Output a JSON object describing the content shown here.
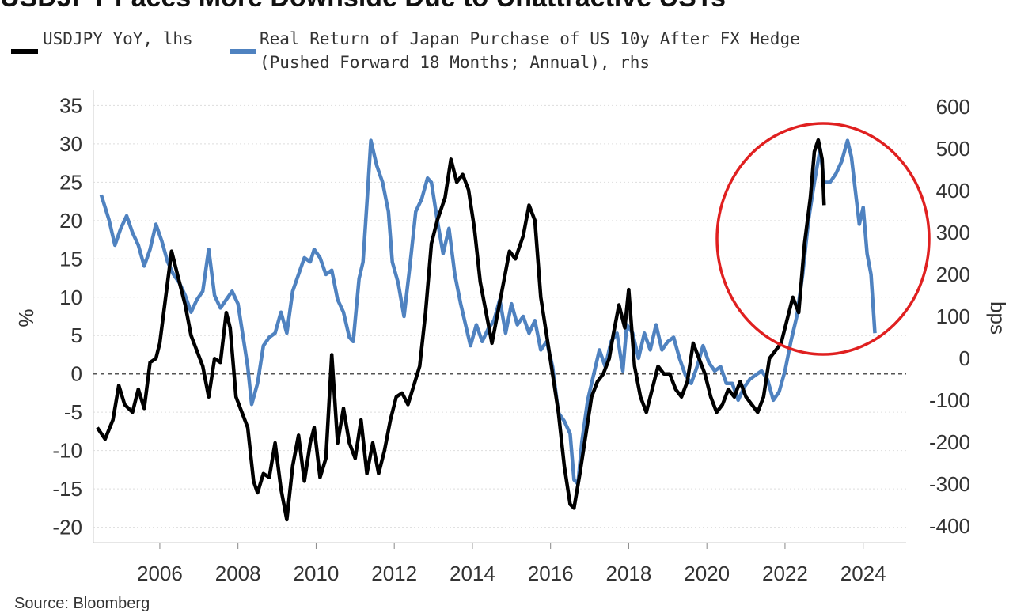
{
  "title": "USDJPY Faces More Downside Due to Unattractive USTs",
  "legend": {
    "series1": "USDJPY YoY, lhs",
    "series2_line1": "Real Return of Japan Purchase of US 10y After FX Hedge",
    "series2_line2": "(Pushed Forward 18 Months; Annual), rhs"
  },
  "source": "Source: Bloomberg",
  "colors": {
    "usdjpy": "#000000",
    "real_return": "#4f82c0",
    "annotation_circle": "#e02020",
    "zero_line": "#555555",
    "grid": "#dddddd"
  },
  "chart_data": {
    "type": "line",
    "xlim": [
      2004.3,
      2025.1
    ],
    "x_ticks": [
      2006,
      2008,
      2010,
      2012,
      2014,
      2016,
      2018,
      2020,
      2022,
      2024
    ],
    "left_axis": {
      "label": "%",
      "ylim": [
        -22,
        37
      ],
      "ticks": [
        -20,
        -15,
        -10,
        -5,
        0,
        5,
        10,
        15,
        20,
        25,
        30,
        35
      ]
    },
    "right_axis": {
      "label": "bps",
      "ylim": [
        -440,
        640
      ],
      "ticks": [
        -400,
        -300,
        -200,
        -100,
        0,
        100,
        200,
        300,
        400,
        500,
        600
      ]
    },
    "zero_line": 0,
    "annotation": "circle around 2022-2024 peak",
    "series": [
      {
        "name": "USDJPY YoY, lhs",
        "axis": "left",
        "points": [
          [
            2004.4,
            -7
          ],
          [
            2004.6,
            -8.5
          ],
          [
            2004.8,
            -6
          ],
          [
            2004.95,
            -1.5
          ],
          [
            2005.1,
            -4
          ],
          [
            2005.3,
            -5
          ],
          [
            2005.45,
            -2
          ],
          [
            2005.6,
            -4.5
          ],
          [
            2005.75,
            1.5
          ],
          [
            2005.9,
            2
          ],
          [
            2006.0,
            4
          ],
          [
            2006.15,
            10
          ],
          [
            2006.3,
            16
          ],
          [
            2006.5,
            12
          ],
          [
            2006.65,
            9
          ],
          [
            2006.8,
            5
          ],
          [
            2006.95,
            3
          ],
          [
            2007.1,
            1
          ],
          [
            2007.25,
            -3
          ],
          [
            2007.4,
            2
          ],
          [
            2007.55,
            1.5
          ],
          [
            2007.7,
            8
          ],
          [
            2007.8,
            6
          ],
          [
            2007.95,
            -3
          ],
          [
            2008.1,
            -5
          ],
          [
            2008.25,
            -7
          ],
          [
            2008.4,
            -14
          ],
          [
            2008.5,
            -15.5
          ],
          [
            2008.65,
            -13
          ],
          [
            2008.8,
            -13.5
          ],
          [
            2008.95,
            -9
          ],
          [
            2009.1,
            -15
          ],
          [
            2009.25,
            -19
          ],
          [
            2009.4,
            -12
          ],
          [
            2009.55,
            -8
          ],
          [
            2009.7,
            -14
          ],
          [
            2009.85,
            -9
          ],
          [
            2009.95,
            -7
          ],
          [
            2010.1,
            -13.5
          ],
          [
            2010.25,
            -11
          ],
          [
            2010.4,
            2.5
          ],
          [
            2010.55,
            -9
          ],
          [
            2010.7,
            -4.5
          ],
          [
            2010.85,
            -9
          ],
          [
            2011.0,
            -11
          ],
          [
            2011.15,
            -6
          ],
          [
            2011.3,
            -13
          ],
          [
            2011.45,
            -9
          ],
          [
            2011.6,
            -13
          ],
          [
            2011.75,
            -10
          ],
          [
            2011.9,
            -6
          ],
          [
            2012.05,
            -3
          ],
          [
            2012.2,
            -2.5
          ],
          [
            2012.35,
            -4
          ],
          [
            2012.5,
            -1.5
          ],
          [
            2012.65,
            1
          ],
          [
            2012.8,
            8
          ],
          [
            2012.95,
            17
          ],
          [
            2013.1,
            20
          ],
          [
            2013.3,
            23
          ],
          [
            2013.45,
            28
          ],
          [
            2013.6,
            25
          ],
          [
            2013.75,
            26
          ],
          [
            2013.9,
            24
          ],
          [
            2014.05,
            19
          ],
          [
            2014.2,
            12
          ],
          [
            2014.35,
            8
          ],
          [
            2014.5,
            4
          ],
          [
            2014.65,
            8
          ],
          [
            2014.8,
            12
          ],
          [
            2014.95,
            16
          ],
          [
            2015.1,
            15
          ],
          [
            2015.3,
            18
          ],
          [
            2015.45,
            22
          ],
          [
            2015.6,
            20
          ],
          [
            2015.75,
            10
          ],
          [
            2015.9,
            5
          ],
          [
            2016.05,
            0
          ],
          [
            2016.2,
            -5
          ],
          [
            2016.35,
            -12
          ],
          [
            2016.5,
            -17
          ],
          [
            2016.6,
            -17.5
          ],
          [
            2016.75,
            -13
          ],
          [
            2016.9,
            -8
          ],
          [
            2017.05,
            -3
          ],
          [
            2017.2,
            -1
          ],
          [
            2017.35,
            0
          ],
          [
            2017.5,
            2
          ],
          [
            2017.6,
            5
          ],
          [
            2017.75,
            9
          ],
          [
            2017.9,
            6
          ],
          [
            2018.0,
            11
          ],
          [
            2018.15,
            1
          ],
          [
            2018.3,
            -3
          ],
          [
            2018.45,
            -5
          ],
          [
            2018.6,
            -2
          ],
          [
            2018.75,
            1
          ],
          [
            2018.9,
            0
          ],
          [
            2019.05,
            0
          ],
          [
            2019.2,
            -2
          ],
          [
            2019.35,
            -3
          ],
          [
            2019.5,
            -1
          ],
          [
            2019.65,
            4
          ],
          [
            2019.8,
            2
          ],
          [
            2019.95,
            0
          ],
          [
            2020.1,
            -3
          ],
          [
            2020.25,
            -5
          ],
          [
            2020.4,
            -4
          ],
          [
            2020.55,
            -2
          ],
          [
            2020.7,
            -3
          ],
          [
            2020.85,
            -1
          ],
          [
            2021.0,
            -3
          ],
          [
            2021.15,
            -4
          ],
          [
            2021.3,
            -5
          ],
          [
            2021.45,
            -3
          ],
          [
            2021.6,
            2
          ],
          [
            2021.75,
            3
          ],
          [
            2021.9,
            4
          ],
          [
            2022.05,
            7
          ],
          [
            2022.2,
            10
          ],
          [
            2022.35,
            8
          ],
          [
            2022.5,
            17
          ],
          [
            2022.65,
            23
          ],
          [
            2022.75,
            29
          ],
          [
            2022.85,
            30.5
          ],
          [
            2022.95,
            28
          ],
          [
            2023.0,
            22
          ]
        ]
      },
      {
        "name": "Real Return of Japan Purchase of US 10y After FX Hedge (Pushed Forward 18 Months; Annual), rhs",
        "axis": "right",
        "points": [
          [
            2004.5,
            390
          ],
          [
            2004.7,
            330
          ],
          [
            2004.85,
            270
          ],
          [
            2005.0,
            310
          ],
          [
            2005.15,
            340
          ],
          [
            2005.3,
            300
          ],
          [
            2005.45,
            270
          ],
          [
            2005.6,
            220
          ],
          [
            2005.75,
            260
          ],
          [
            2005.9,
            320
          ],
          [
            2006.05,
            280
          ],
          [
            2006.2,
            230
          ],
          [
            2006.35,
            200
          ],
          [
            2006.5,
            180
          ],
          [
            2006.65,
            150
          ],
          [
            2006.8,
            110
          ],
          [
            2006.95,
            140
          ],
          [
            2007.1,
            160
          ],
          [
            2007.25,
            260
          ],
          [
            2007.4,
            150
          ],
          [
            2007.55,
            120
          ],
          [
            2007.7,
            140
          ],
          [
            2007.85,
            160
          ],
          [
            2008.0,
            130
          ],
          [
            2008.15,
            40
          ],
          [
            2008.25,
            -20
          ],
          [
            2008.35,
            -110
          ],
          [
            2008.5,
            -60
          ],
          [
            2008.65,
            30
          ],
          [
            2008.8,
            50
          ],
          [
            2008.95,
            60
          ],
          [
            2009.1,
            110
          ],
          [
            2009.25,
            60
          ],
          [
            2009.4,
            160
          ],
          [
            2009.55,
            200
          ],
          [
            2009.7,
            240
          ],
          [
            2009.85,
            230
          ],
          [
            2009.95,
            260
          ],
          [
            2010.1,
            240
          ],
          [
            2010.25,
            200
          ],
          [
            2010.4,
            210
          ],
          [
            2010.55,
            140
          ],
          [
            2010.7,
            110
          ],
          [
            2010.85,
            50
          ],
          [
            2010.95,
            40
          ],
          [
            2011.1,
            190
          ],
          [
            2011.2,
            230
          ],
          [
            2011.3,
            370
          ],
          [
            2011.4,
            520
          ],
          [
            2011.55,
            460
          ],
          [
            2011.7,
            420
          ],
          [
            2011.85,
            350
          ],
          [
            2011.95,
            230
          ],
          [
            2012.1,
            180
          ],
          [
            2012.25,
            100
          ],
          [
            2012.4,
            220
          ],
          [
            2012.55,
            350
          ],
          [
            2012.7,
            380
          ],
          [
            2012.85,
            430
          ],
          [
            2012.95,
            420
          ],
          [
            2013.1,
            330
          ],
          [
            2013.25,
            250
          ],
          [
            2013.4,
            310
          ],
          [
            2013.55,
            200
          ],
          [
            2013.7,
            130
          ],
          [
            2013.85,
            70
          ],
          [
            2013.95,
            30
          ],
          [
            2014.1,
            80
          ],
          [
            2014.25,
            40
          ],
          [
            2014.4,
            70
          ],
          [
            2014.55,
            90
          ],
          [
            2014.7,
            140
          ],
          [
            2014.85,
            60
          ],
          [
            2015.0,
            130
          ],
          [
            2015.15,
            80
          ],
          [
            2015.3,
            100
          ],
          [
            2015.45,
            60
          ],
          [
            2015.6,
            90
          ],
          [
            2015.75,
            20
          ],
          [
            2015.9,
            40
          ],
          [
            2016.05,
            -20
          ],
          [
            2016.2,
            -130
          ],
          [
            2016.35,
            -150
          ],
          [
            2016.5,
            -180
          ],
          [
            2016.6,
            -290
          ],
          [
            2016.7,
            -300
          ],
          [
            2016.8,
            -200
          ],
          [
            2016.95,
            -100
          ],
          [
            2017.1,
            -40
          ],
          [
            2017.25,
            20
          ],
          [
            2017.4,
            -20
          ],
          [
            2017.55,
            40
          ],
          [
            2017.7,
            60
          ],
          [
            2017.85,
            -30
          ],
          [
            2017.95,
            80
          ],
          [
            2018.1,
            60
          ],
          [
            2018.25,
            0
          ],
          [
            2018.4,
            60
          ],
          [
            2018.55,
            20
          ],
          [
            2018.7,
            80
          ],
          [
            2018.85,
            20
          ],
          [
            2019.0,
            40
          ],
          [
            2019.15,
            50
          ],
          [
            2019.3,
            0
          ],
          [
            2019.45,
            -40
          ],
          [
            2019.6,
            -60
          ],
          [
            2019.75,
            -20
          ],
          [
            2019.9,
            30
          ],
          [
            2020.05,
            -10
          ],
          [
            2020.2,
            -30
          ],
          [
            2020.35,
            -20
          ],
          [
            2020.5,
            -60
          ],
          [
            2020.65,
            -60
          ],
          [
            2020.8,
            -100
          ],
          [
            2020.95,
            -70
          ],
          [
            2021.1,
            -50
          ],
          [
            2021.25,
            -40
          ],
          [
            2021.4,
            -30
          ],
          [
            2021.55,
            -50
          ],
          [
            2021.7,
            -100
          ],
          [
            2021.85,
            -80
          ],
          [
            2022.0,
            -30
          ],
          [
            2022.15,
            40
          ],
          [
            2022.3,
            100
          ],
          [
            2022.45,
            200
          ],
          [
            2022.6,
            330
          ],
          [
            2022.75,
            420
          ],
          [
            2022.9,
            500
          ],
          [
            2023.0,
            420
          ],
          [
            2023.15,
            420
          ],
          [
            2023.3,
            440
          ],
          [
            2023.45,
            470
          ],
          [
            2023.6,
            520
          ],
          [
            2023.7,
            480
          ],
          [
            2023.8,
            400
          ],
          [
            2023.9,
            320
          ],
          [
            2024.0,
            360
          ],
          [
            2024.1,
            250
          ],
          [
            2024.2,
            200
          ],
          [
            2024.3,
            60
          ]
        ]
      }
    ]
  }
}
